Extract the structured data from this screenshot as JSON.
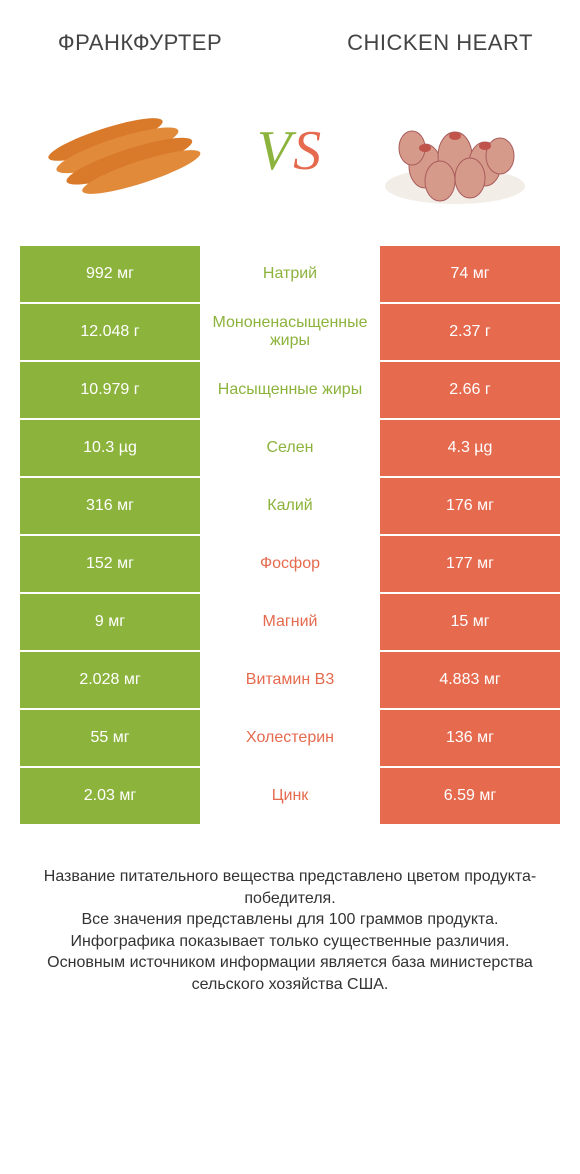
{
  "colors": {
    "green": "#8cb33c",
    "orange": "#e56a4e",
    "vs_left": "#8cb33c",
    "vs_right": "#e56a4e",
    "white": "#ffffff"
  },
  "header": {
    "left_title": "ФРАНКФУРТЕР",
    "right_title": "CHICKEN HEART",
    "vs": "VS"
  },
  "rows": [
    {
      "label": "Натрий",
      "left": "992 мг",
      "right": "74 мг",
      "winner": "left"
    },
    {
      "label": "Мононенасыщенные жиры",
      "left": "12.048 г",
      "right": "2.37 г",
      "winner": "left"
    },
    {
      "label": "Насыщенные жиры",
      "left": "10.979 г",
      "right": "2.66 г",
      "winner": "left"
    },
    {
      "label": "Селен",
      "left": "10.3 µg",
      "right": "4.3 µg",
      "winner": "left"
    },
    {
      "label": "Калий",
      "left": "316 мг",
      "right": "176 мг",
      "winner": "left"
    },
    {
      "label": "Фосфор",
      "left": "152 мг",
      "right": "177 мг",
      "winner": "right"
    },
    {
      "label": "Магний",
      "left": "9 мг",
      "right": "15 мг",
      "winner": "right"
    },
    {
      "label": "Витамин B3",
      "left": "2.028 мг",
      "right": "4.883 мг",
      "winner": "right"
    },
    {
      "label": "Холестерин",
      "left": "55 мг",
      "right": "136 мг",
      "winner": "right"
    },
    {
      "label": "Цинк",
      "left": "2.03 мг",
      "right": "6.59 мг",
      "winner": "right"
    }
  ],
  "footer": {
    "line1": "Название питательного вещества представлено цветом продукта-победителя.",
    "line2": "Все значения представлены для 100 граммов продукта.",
    "line3": "Инфографика показывает только существенные различия.",
    "line4": "Основным источником информации является база министерства сельского хозяйства США."
  }
}
